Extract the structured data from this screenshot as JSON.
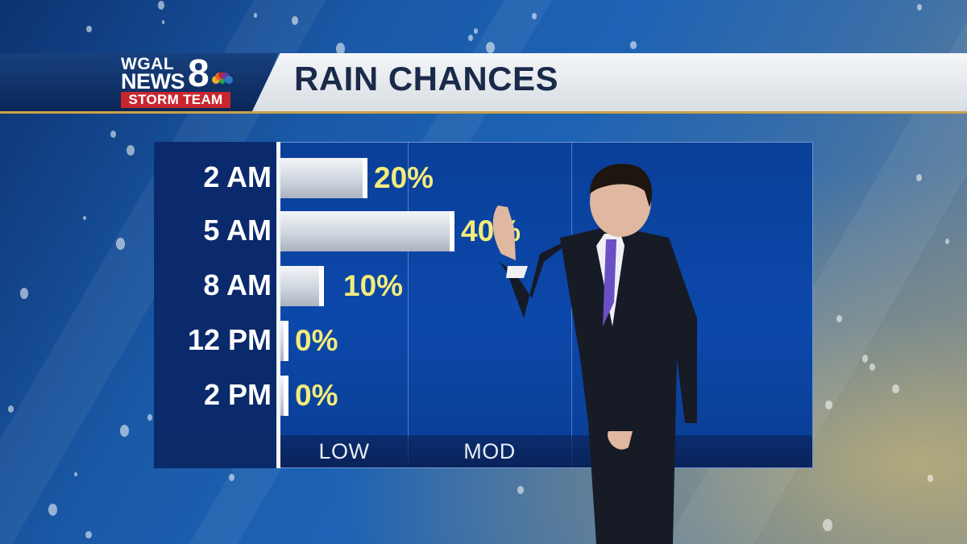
{
  "header": {
    "logo_line1": "WGAL",
    "logo_line2": "NEWS",
    "logo_number": "8",
    "logo_badge": "STORM TEAM",
    "title": "RAIN CHANCES"
  },
  "colors": {
    "bar_fill": "#cfd6df",
    "value_text": "#f2ec7c",
    "panel_blue": "#0c48ab",
    "badge_red": "#c8262e",
    "accent_gold": "#c9a24a"
  },
  "chart_data": {
    "type": "bar",
    "orientation": "horizontal",
    "title": "RAIN CHANCES",
    "categories": [
      "2 AM",
      "5 AM",
      "8 AM",
      "12 PM",
      "2 PM"
    ],
    "values": [
      20,
      40,
      10,
      0,
      0
    ],
    "value_labels": [
      "20%",
      "40%",
      "10%",
      "0%",
      "0%"
    ],
    "xlim": [
      0,
      100
    ],
    "x_bands": [
      "LOW",
      "MOD"
    ],
    "grid": true
  }
}
